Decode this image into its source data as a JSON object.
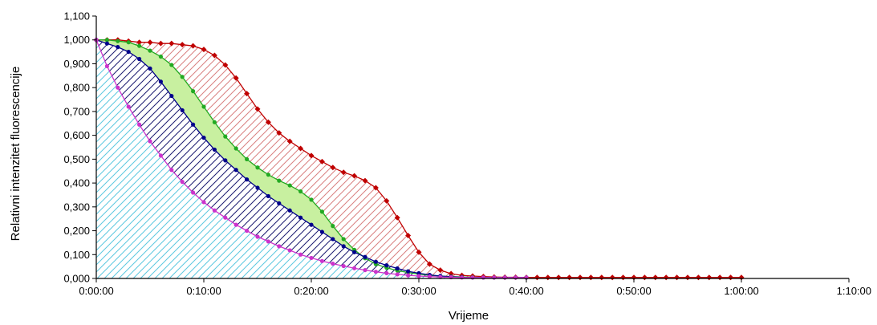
{
  "chart_data": {
    "type": "area",
    "title": "",
    "xlabel": "Vrijeme",
    "ylabel": "Relativni intenzitet fluorescencije",
    "xlim": [
      0,
      70
    ],
    "ylim": [
      0,
      1.1
    ],
    "x_tick_labels": [
      "0:00:00",
      "0:10:00",
      "0:20:00",
      "0:30:00",
      "0:40:00",
      "0:50:00",
      "1:00:00",
      "1:10:00"
    ],
    "y_tick_labels": [
      "0,000",
      "0,100",
      "0,200",
      "0,300",
      "0,400",
      "0,500",
      "0,600",
      "0,700",
      "0,800",
      "0,900",
      "1,000",
      "1,100"
    ],
    "grid": false,
    "legend": "none",
    "series": [
      {
        "color": "#c00000",
        "fill_color": "#d98080",
        "hatch": "diagonal",
        "marker": "diamond",
        "x": [
          0,
          1,
          2,
          3,
          4,
          5,
          6,
          7,
          8,
          9,
          10,
          11,
          12,
          13,
          14,
          15,
          16,
          17,
          18,
          19,
          20,
          21,
          22,
          23,
          24,
          25,
          26,
          27,
          28,
          29,
          30,
          31,
          32,
          33,
          34,
          35,
          36,
          37,
          38,
          39,
          40,
          41,
          42,
          43,
          44,
          45,
          46,
          47,
          48,
          49,
          50,
          51,
          52,
          53,
          54,
          55,
          56,
          57,
          58,
          59,
          60
        ],
        "y": [
          1.0,
          1.0,
          1.0,
          0.995,
          0.99,
          0.99,
          0.985,
          0.985,
          0.98,
          0.975,
          0.96,
          0.935,
          0.895,
          0.84,
          0.775,
          0.71,
          0.655,
          0.61,
          0.575,
          0.545,
          0.515,
          0.49,
          0.465,
          0.445,
          0.43,
          0.41,
          0.38,
          0.325,
          0.255,
          0.18,
          0.11,
          0.06,
          0.035,
          0.02,
          0.013,
          0.01,
          0.008,
          0.006,
          0.005,
          0.005,
          0.004,
          0.004,
          0.004,
          0.004,
          0.004,
          0.004,
          0.004,
          0.004,
          0.004,
          0.004,
          0.004,
          0.004,
          0.004,
          0.004,
          0.004,
          0.004,
          0.004,
          0.004,
          0.004,
          0.004,
          0.004
        ]
      },
      {
        "color": "#22aa22",
        "fill_color": "#c8f0a0",
        "hatch": "none",
        "marker": "circle",
        "x": [
          0,
          1,
          2,
          3,
          4,
          5,
          6,
          7,
          8,
          9,
          10,
          11,
          12,
          13,
          14,
          15,
          16,
          17,
          18,
          19,
          20,
          21,
          22,
          23,
          24,
          25,
          26,
          27,
          28,
          29,
          30,
          31,
          32,
          33,
          34,
          35,
          36,
          37,
          38,
          39,
          40
        ],
        "y": [
          1.0,
          1.0,
          0.995,
          0.99,
          0.975,
          0.955,
          0.93,
          0.895,
          0.845,
          0.785,
          0.72,
          0.655,
          0.595,
          0.545,
          0.5,
          0.465,
          0.435,
          0.41,
          0.39,
          0.365,
          0.33,
          0.28,
          0.22,
          0.165,
          0.12,
          0.085,
          0.06,
          0.045,
          0.033,
          0.025,
          0.018,
          0.013,
          0.01,
          0.008,
          0.006,
          0.005,
          0.004,
          0.004,
          0.004,
          0.004,
          0.004
        ]
      },
      {
        "color": "#00008b",
        "fill_color": "#1a1a70",
        "hatch": "diagonal",
        "marker": "circle",
        "x": [
          0,
          1,
          2,
          3,
          4,
          5,
          6,
          7,
          8,
          9,
          10,
          11,
          12,
          13,
          14,
          15,
          16,
          17,
          18,
          19,
          20,
          21,
          22,
          23,
          24,
          25,
          26,
          27,
          28,
          29,
          30,
          31,
          32,
          33,
          34,
          35,
          36,
          37,
          38,
          39,
          40
        ],
        "y": [
          1.0,
          0.985,
          0.97,
          0.95,
          0.92,
          0.88,
          0.825,
          0.765,
          0.705,
          0.645,
          0.59,
          0.54,
          0.495,
          0.455,
          0.415,
          0.38,
          0.345,
          0.315,
          0.285,
          0.255,
          0.225,
          0.195,
          0.165,
          0.135,
          0.11,
          0.09,
          0.07,
          0.055,
          0.042,
          0.03,
          0.022,
          0.015,
          0.01,
          0.007,
          0.005,
          0.004,
          0.004,
          0.004,
          0.004,
          0.004,
          0.004
        ]
      },
      {
        "color": "#cc33cc",
        "fill_color": "#5cc8e0",
        "hatch": "diagonal",
        "marker": "circle",
        "x": [
          0,
          1,
          2,
          3,
          4,
          5,
          6,
          7,
          8,
          9,
          10,
          11,
          12,
          13,
          14,
          15,
          16,
          17,
          18,
          19,
          20,
          21,
          22,
          23,
          24,
          25,
          26,
          27,
          28,
          29,
          30,
          31,
          32,
          33,
          34,
          35,
          36,
          37,
          38,
          39,
          40
        ],
        "y": [
          1.0,
          0.89,
          0.8,
          0.72,
          0.645,
          0.575,
          0.515,
          0.455,
          0.405,
          0.36,
          0.32,
          0.285,
          0.255,
          0.225,
          0.2,
          0.175,
          0.155,
          0.135,
          0.118,
          0.1,
          0.086,
          0.073,
          0.062,
          0.052,
          0.043,
          0.035,
          0.028,
          0.022,
          0.017,
          0.013,
          0.01,
          0.008,
          0.006,
          0.005,
          0.004,
          0.004,
          0.004,
          0.004,
          0.004,
          0.004,
          0.004
        ]
      }
    ]
  }
}
